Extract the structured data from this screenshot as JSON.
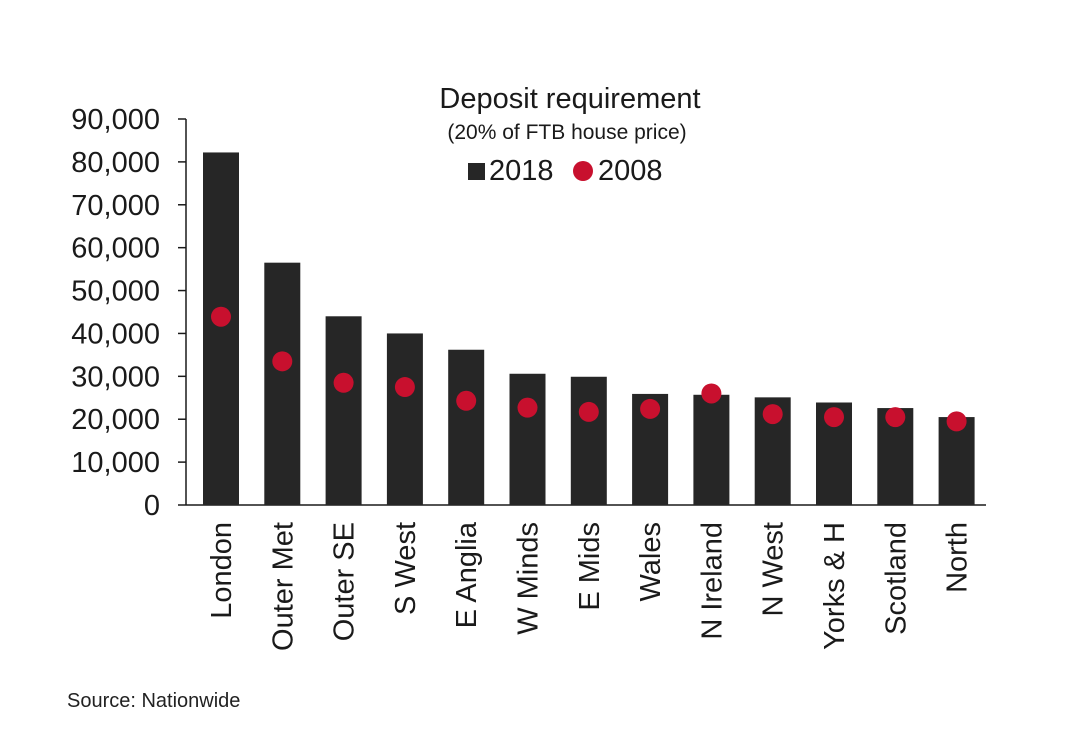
{
  "chart_data": {
    "type": "bar",
    "title": "Deposit requirement",
    "subtitle": "(20% of FTB house price)",
    "categories": [
      "London",
      "Outer Met",
      "Outer SE",
      "S West",
      "E Anglia",
      "W Minds",
      "E Mids",
      "Wales",
      "N Ireland",
      "N West",
      "Yorks & H",
      "Scotland",
      "North"
    ],
    "series": [
      {
        "name": "2018",
        "mark": "bar",
        "color": "#262626",
        "values": [
          82200,
          56500,
          44000,
          40000,
          36200,
          30600,
          29900,
          25900,
          25700,
          25100,
          23900,
          22600,
          20500
        ]
      },
      {
        "name": "2008",
        "mark": "dot",
        "color": "#c8102e",
        "values": [
          43900,
          33500,
          28500,
          27500,
          24300,
          22700,
          21700,
          22400,
          26000,
          21200,
          20500,
          20500,
          19500
        ]
      }
    ],
    "ylim": [
      0,
      90000
    ],
    "yticks": [
      "0",
      "10,000",
      "20,000",
      "30,000",
      "40,000",
      "50,000",
      "60,000",
      "70,000",
      "80,000",
      "90,000"
    ],
    "legend": "top-center",
    "grid": false
  },
  "source": "Source: Nationwide"
}
